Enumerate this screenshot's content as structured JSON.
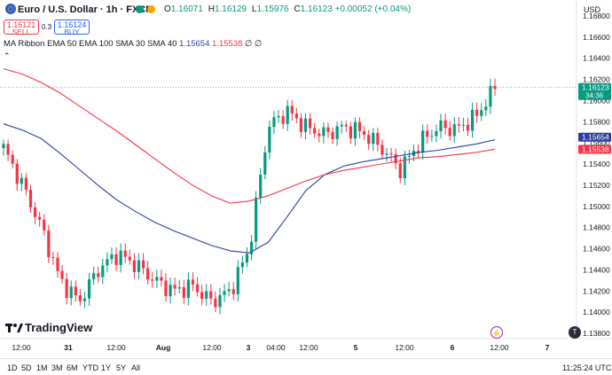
{
  "header": {
    "title": "Euro / U.S. Dollar · 1h · FXCM",
    "ohlc": {
      "o_label": "O",
      "o": "1.16071",
      "h_label": "H",
      "h": "1.16129",
      "l_label": "L",
      "l": "1.15976",
      "c_label": "C",
      "c": "1.16123",
      "change": "+0.00052 (+0.04%)"
    },
    "currency": "USD"
  },
  "trade": {
    "sell_price": "1.16121",
    "sell_label": "SELL",
    "spread": "0.3",
    "buy_price": "1.16124",
    "buy_label": "BUY"
  },
  "indicator": {
    "label": "MA Ribbon EMA 50 EMA 100 SMA 30 SMA 40",
    "value_blue": "1.15654",
    "value_red": "1.15538",
    "extra": "∅ ∅"
  },
  "colors": {
    "up": "#089981",
    "down": "#f23645",
    "ma_blue": "#2a3f9e",
    "ma_red": "#f23645",
    "last_price": "#089981"
  },
  "price_axis": {
    "ticks": [
      "1.16800",
      "1.16600",
      "1.16400",
      "1.16200",
      "1.16000",
      "1.15800",
      "1.15600",
      "1.15400",
      "1.15200",
      "1.15000",
      "1.14800",
      "1.14600",
      "1.14400",
      "1.14200",
      "1.14000",
      "1.13800"
    ],
    "last_price": "1.16123",
    "countdown": "34:36",
    "ma_blue_label": "1.15654",
    "ma_red_label": "1.15538"
  },
  "time_axis": [
    "12:00",
    "31",
    "12:00",
    "Aug",
    "12:00",
    "3",
    "04:00",
    "12:00",
    "5",
    "12:00",
    "6",
    "12:00",
    "7"
  ],
  "timeframes": [
    "1D",
    "5D",
    "1M",
    "3M",
    "6M",
    "YTD",
    "1Y",
    "5Y",
    "All"
  ],
  "clock": "11:25:24 UTC",
  "logo": "TradingView",
  "chart_data": {
    "type": "candlestick",
    "ylim": [
      1.1375,
      1.1695
    ],
    "series": [
      {
        "name": "EMA 50",
        "values": [
          1.1578,
          1.1572,
          1.1564,
          1.155,
          1.1535,
          1.152,
          1.1506,
          1.1495,
          1.1485,
          1.1477,
          1.147,
          1.1463,
          1.1458,
          1.1456,
          1.1466,
          1.149,
          1.1515,
          1.153,
          1.1538,
          1.1542,
          1.1545,
          1.1548,
          1.1551,
          1.1553,
          1.1556,
          1.1559,
          1.1563
        ]
      },
      {
        "name": "EMA 100",
        "values": [
          1.163,
          1.1625,
          1.1617,
          1.1607,
          1.1595,
          1.1583,
          1.1571,
          1.1558,
          1.1545,
          1.1532,
          1.152,
          1.151,
          1.1503,
          1.1505,
          1.151,
          1.1517,
          1.1524,
          1.153,
          1.1534,
          1.1537,
          1.154,
          1.1543,
          1.1546,
          1.1547,
          1.1549,
          1.1551,
          1.1554
        ]
      },
      {
        "name": "Price",
        "values": [
          1.1555,
          1.152,
          1.148,
          1.143,
          1.141,
          1.144,
          1.1455,
          1.1445,
          1.143,
          1.142,
          1.1425,
          1.141,
          1.142,
          1.146,
          1.1575,
          1.159,
          1.1575,
          1.1568,
          1.1575,
          1.157,
          1.1555,
          1.1535,
          1.156,
          1.1575,
          1.1573,
          1.1585,
          1.1612
        ]
      }
    ]
  }
}
